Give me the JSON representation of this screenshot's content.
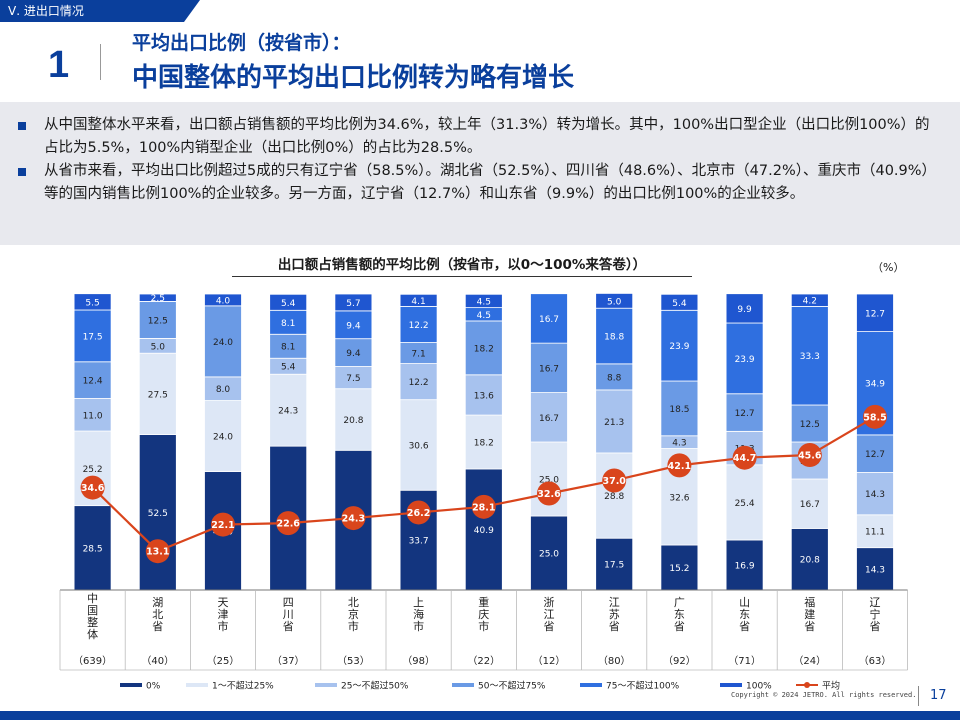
{
  "section_tab": "Ⅴ. 进出口情况",
  "title": {
    "number": "1",
    "subtitle": "平均出口比例（按省市）：",
    "main": "中国整体的平均出口比例转为略有增长"
  },
  "summary": [
    "从中国整体水平来看，出口额占销售额的平均比例为34.6%，较上年（31.3%）转为增长。其中，100%出口型企业（出口比例100%）的占比为5.5%，100%内销型企业（出口比例0%）的占比为28.5%。",
    "从省市来看，平均出口比例超过5成的只有辽宁省（58.5%）。湖北省（52.5%）、四川省（48.6%）、北京市（47.2%）、重庆市（40.9%）等的国内销售比例100%的企业较多。另一方面，辽宁省（12.7%）和山东省（9.9%）的出口比例100%的企业较多。"
  ],
  "colors": {
    "brand": "#0a3f9c",
    "seg": [
      "#13357f",
      "#dde7f6",
      "#a7c2ee",
      "#6a9ae5",
      "#2f6fe0",
      "#1f56d0"
    ],
    "avg_line": "#d9451c"
  },
  "chart_data": {
    "type": "bar",
    "stacked": true,
    "title": "出口额占销售额的平均比例（按省市，以0～100%来答卷））",
    "unit": "（%）",
    "ylim": [
      0,
      100
    ],
    "categories": [
      "中国整体",
      "湖北省",
      "天津市",
      "四川省",
      "北京市",
      "上海市",
      "重庆市",
      "浙江省",
      "江苏省",
      "广东省",
      "山东省",
      "福建省",
      "辽宁省"
    ],
    "counts": [
      "（639）",
      "（40）",
      "（25）",
      "（37）",
      "（53）",
      "（98）",
      "（22）",
      "（12）",
      "（80）",
      "（92）",
      "（71）",
      "（24）",
      "（63）"
    ],
    "series": [
      {
        "name": "0%",
        "values": [
          28.5,
          52.5,
          40.0,
          48.6,
          47.2,
          33.7,
          40.9,
          25.0,
          17.5,
          15.2,
          16.9,
          20.8,
          14.3
        ]
      },
      {
        "name": "1～不超过25%",
        "values": [
          25.2,
          27.5,
          24.0,
          24.3,
          20.8,
          30.6,
          18.2,
          25.0,
          28.8,
          32.6,
          25.4,
          16.7,
          11.1
        ]
      },
      {
        "name": "25～不超过50%",
        "values": [
          11.0,
          5.0,
          8.0,
          5.4,
          7.5,
          12.2,
          13.6,
          16.7,
          21.3,
          4.3,
          11.3,
          12.5,
          14.3
        ]
      },
      {
        "name": "50～不超过75%",
        "values": [
          12.4,
          12.5,
          24.0,
          8.1,
          9.4,
          7.1,
          18.2,
          16.7,
          8.8,
          18.5,
          12.7,
          12.5,
          12.7
        ]
      },
      {
        "name": "75～不超过100%",
        "values": [
          17.5,
          0,
          0,
          8.1,
          9.4,
          12.2,
          4.5,
          16.7,
          18.8,
          23.9,
          23.9,
          33.3,
          34.9
        ]
      },
      {
        "name": "100%",
        "values": [
          5.5,
          2.5,
          4.0,
          5.4,
          5.7,
          4.1,
          4.5,
          0,
          5.0,
          5.4,
          9.9,
          4.2,
          12.7
        ]
      }
    ],
    "average": {
      "name": "平均",
      "values": [
        34.6,
        13.1,
        22.1,
        22.6,
        24.3,
        26.2,
        28.1,
        32.6,
        37.0,
        42.1,
        44.7,
        45.6,
        58.5
      ]
    }
  },
  "footer": {
    "copyright": "Copyright © 2024 JETRO. All rights reserved.",
    "page": "17"
  }
}
